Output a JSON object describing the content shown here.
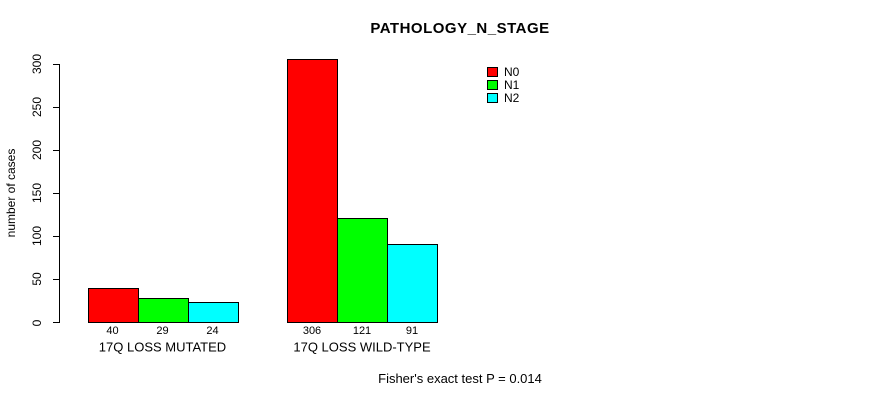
{
  "chart_data": {
    "type": "bar",
    "title": "PATHOLOGY_N_STAGE",
    "ylabel": "number of cases",
    "xlabel": "",
    "ylim": [
      0,
      300
    ],
    "yticks": [
      0,
      50,
      100,
      150,
      200,
      250,
      300
    ],
    "grid": false,
    "legend_position": "top-right",
    "categories": [
      "17Q LOSS MUTATED",
      "17Q LOSS WILD-TYPE"
    ],
    "series": [
      {
        "name": "N0",
        "color": "#ff0000",
        "values": [
          40,
          306
        ]
      },
      {
        "name": "N1",
        "color": "#00ff00",
        "values": [
          29,
          121
        ]
      },
      {
        "name": "N2",
        "color": "#00ffff",
        "values": [
          24,
          91
        ]
      }
    ],
    "bar_value_labels": [
      [
        "40",
        "29",
        "24"
      ],
      [
        "306",
        "121",
        "91"
      ]
    ],
    "footnote": "Fisher's exact test P = 0.014"
  },
  "colors": {
    "axis": "#000000",
    "text": "#000000",
    "background": "#ffffff"
  }
}
